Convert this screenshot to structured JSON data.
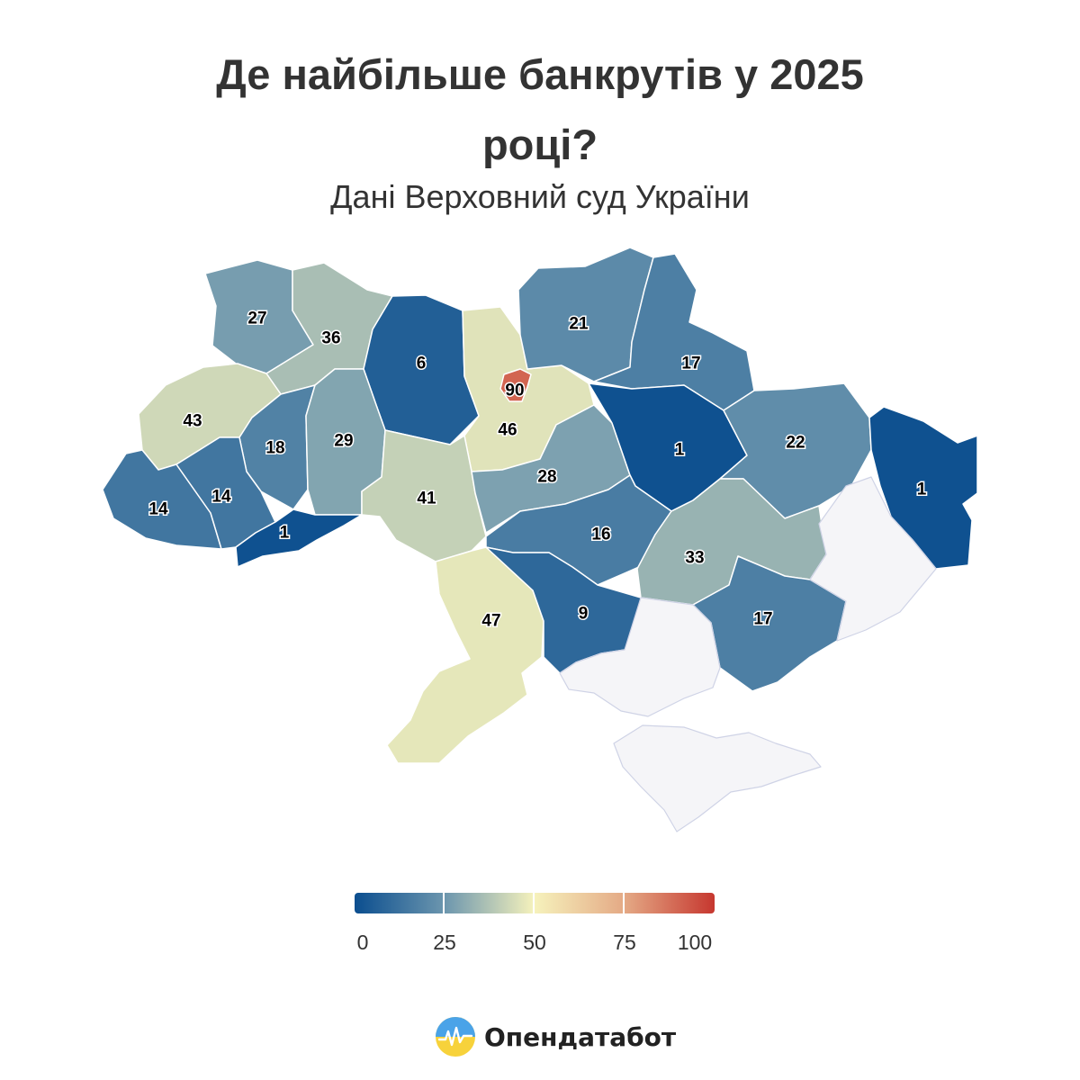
{
  "title_line1": "Де найбільше банкрутів у 2025",
  "title_line2": "році?",
  "subtitle": "Дані Верховний суд України",
  "map_data": {
    "type": "choropleth",
    "color_scale": {
      "min": 0,
      "max": 100,
      "stops": [
        "#0b4e8f",
        "#6c96ae",
        "#f6f2bc",
        "#e4a985",
        "#c6372f"
      ],
      "no_data_color": "#f5f5f8"
    },
    "regions": [
      {
        "name": "Волинська",
        "value": 27
      },
      {
        "name": "Рівненська",
        "value": 36
      },
      {
        "name": "Житомирська",
        "value": 6
      },
      {
        "name": "Київська",
        "value": 46
      },
      {
        "name": "Київ",
        "value": 90
      },
      {
        "name": "Чернігівська",
        "value": 21
      },
      {
        "name": "Сумська",
        "value": 17
      },
      {
        "name": "Львівська",
        "value": 43
      },
      {
        "name": "Тернопільська",
        "value": 18
      },
      {
        "name": "Хмельницька",
        "value": 29
      },
      {
        "name": "Вінницька",
        "value": 41
      },
      {
        "name": "Черкаська",
        "value": 28
      },
      {
        "name": "Полтавська",
        "value": 1
      },
      {
        "name": "Харківська",
        "value": 22
      },
      {
        "name": "Луганська",
        "value": 1
      },
      {
        "name": "Закарпатська",
        "value": 14
      },
      {
        "name": "Івано-Франківська",
        "value": 14
      },
      {
        "name": "Чернівецька",
        "value": 1
      },
      {
        "name": "Кіровоградська",
        "value": 16
      },
      {
        "name": "Дніпропетровська",
        "value": 33
      },
      {
        "name": "Донецька",
        "value": 17
      },
      {
        "name": "Одеська",
        "value": 47
      },
      {
        "name": "Миколаївська",
        "value": 9
      },
      {
        "name": "Херсонська",
        "value": null
      },
      {
        "name": "Запорізька",
        "value": null
      },
      {
        "name": "АР Крим",
        "value": null
      }
    ]
  },
  "legend": {
    "ticks": [
      "0",
      "25",
      "50",
      "75",
      "100"
    ]
  },
  "brand": {
    "name": "Опендатабот"
  }
}
